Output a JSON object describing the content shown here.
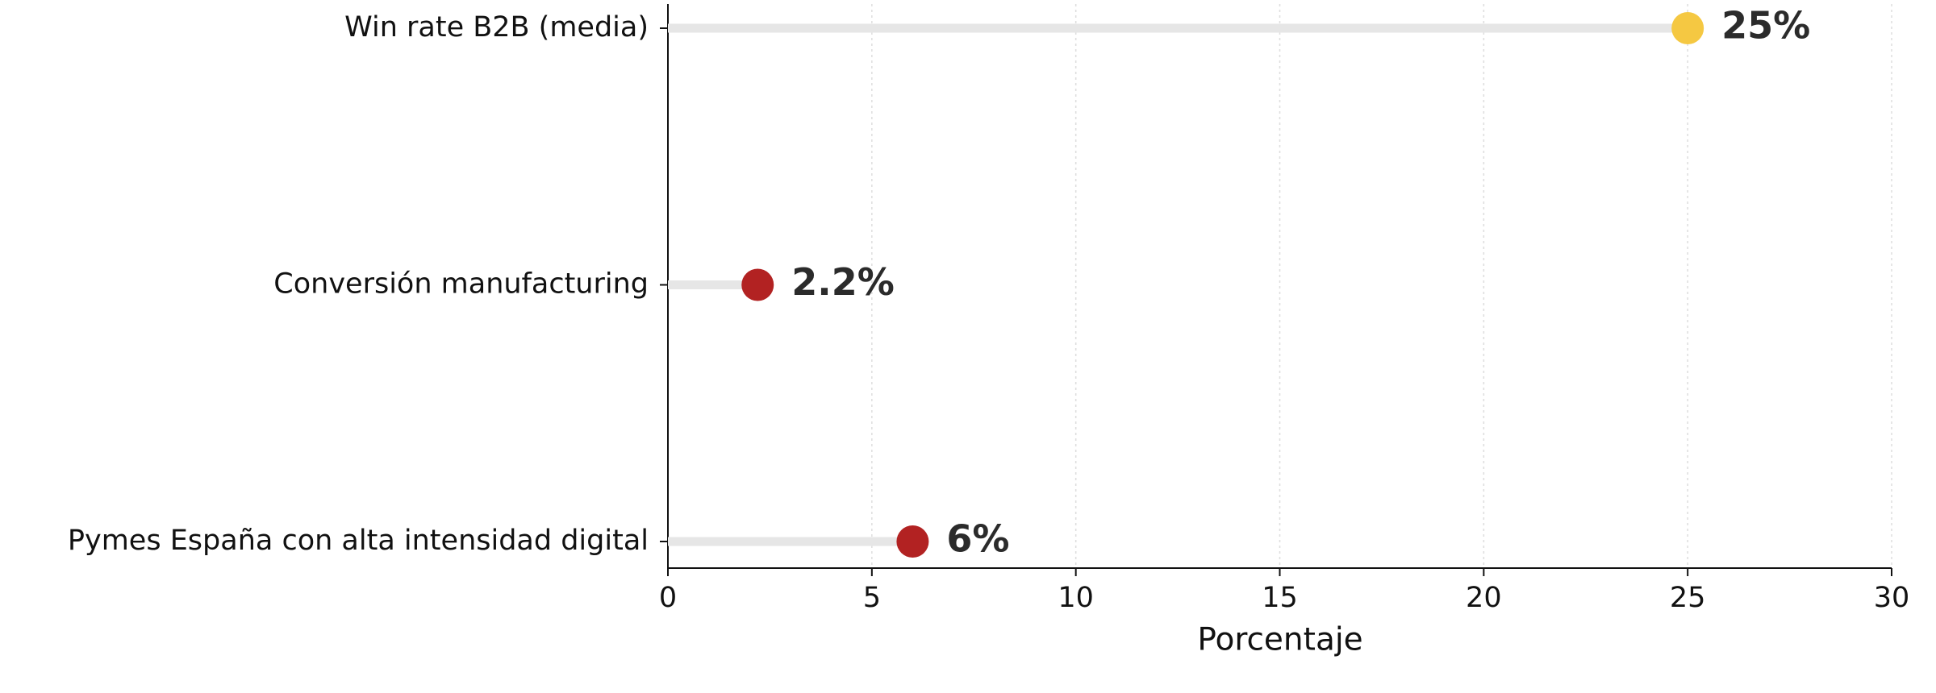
{
  "chart_data": {
    "type": "lollipop",
    "orientation": "horizontal",
    "categories": [
      "Win rate B2B (media)",
      "Conversión manufacturing",
      "Pymes España con alta intensidad digital"
    ],
    "values": [
      25,
      2.2,
      6
    ],
    "value_labels": [
      "25%",
      "2.2%",
      "6%"
    ],
    "colors": [
      "#f5c842",
      "#b22222",
      "#b22222"
    ],
    "stem_color": "#e6e6e6",
    "xlim": [
      0,
      30
    ],
    "xticks": [
      0,
      5,
      10,
      15,
      20,
      25,
      30
    ],
    "xlabel": "Porcentaje",
    "grid": true
  }
}
